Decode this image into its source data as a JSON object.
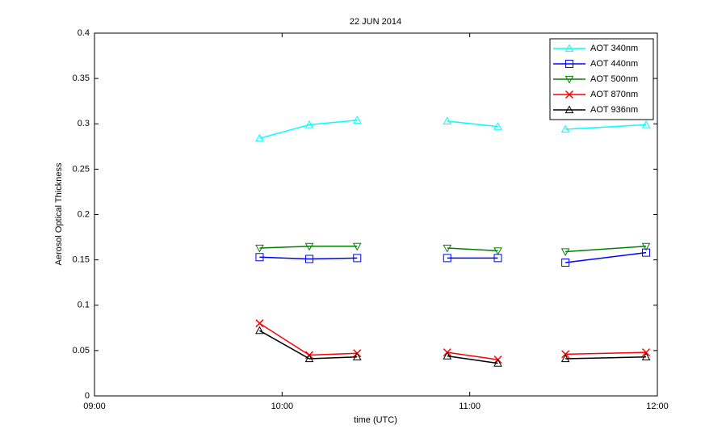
{
  "chart_data": {
    "type": "line",
    "title": "22 JUN 2014",
    "x_label": "time  (UTC)",
    "y_label": "Aerosol Optical Thickness",
    "x": [
      9.88,
      10.145,
      10.4,
      null,
      10.88,
      11.15,
      null,
      11.51,
      11.94
    ],
    "xlim": [
      9,
      12
    ],
    "xticks": [
      {
        "value": 9,
        "label": "09:00"
      },
      {
        "value": 10,
        "label": "10:00"
      },
      {
        "value": 11,
        "label": "11:00"
      },
      {
        "value": 12,
        "label": "12:00"
      }
    ],
    "ylim": [
      0,
      0.4
    ],
    "yticks": [
      0,
      0.05,
      0.1,
      0.15,
      0.2,
      0.25,
      0.3,
      0.35,
      0.4
    ],
    "grid": false,
    "legend": "upper right",
    "series": [
      {
        "name": "AOT 340nm",
        "color": "#00ffff",
        "marker": "triangle-up",
        "values": [
          0.284,
          0.299,
          0.304,
          null,
          0.303,
          0.297,
          null,
          0.294,
          0.299
        ]
      },
      {
        "name": "AOT 440nm",
        "color": "#0000ff",
        "marker": "square",
        "values": [
          0.153,
          0.151,
          0.152,
          null,
          0.152,
          0.152,
          null,
          0.147,
          0.158
        ]
      },
      {
        "name": "AOT 500nm",
        "color": "#008000",
        "marker": "triangle-down",
        "values": [
          0.163,
          0.165,
          0.165,
          null,
          0.163,
          0.16,
          null,
          0.159,
          0.165
        ]
      },
      {
        "name": "AOT 870nm",
        "color": "#ff0000",
        "marker": "x",
        "values": [
          0.08,
          0.045,
          0.047,
          null,
          0.048,
          0.04,
          null,
          0.046,
          0.048
        ]
      },
      {
        "name": "AOT 936nm",
        "color": "#000000",
        "marker": "triangle-up",
        "values": [
          0.072,
          0.041,
          0.043,
          null,
          0.044,
          0.036,
          null,
          0.041,
          0.043
        ]
      }
    ]
  }
}
